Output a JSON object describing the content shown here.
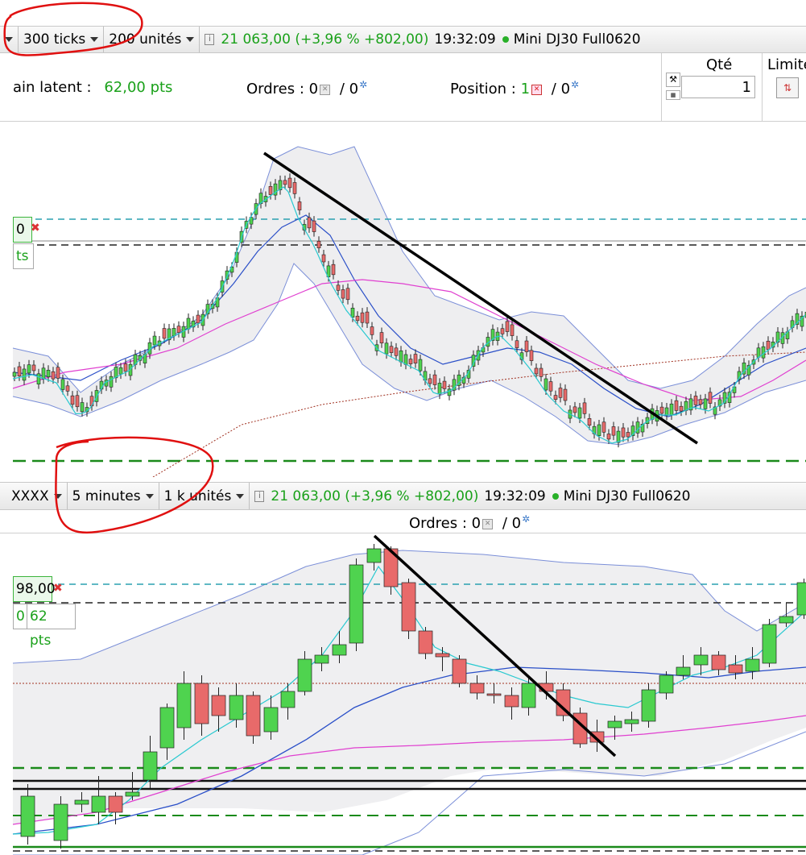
{
  "top_toolbar": {
    "ticks_label": "300 ticks",
    "units_label": "200 unités",
    "price_change": "21 063,00 (+3,96 % +802,00)",
    "time": "19:32:09",
    "instrument": "Mini DJ30 Full0620"
  },
  "order_panel": {
    "latent_label": "ain latent :",
    "latent_value": "62,00 pts",
    "orders_label": "Ordres :",
    "orders_value": "0",
    "orders_sep": "/ 0",
    "position_label": "Position :",
    "position_value": "1",
    "position_sep": "/ 0",
    "qty_label": "Qté",
    "qty_value": "1",
    "limit_label": "Limite"
  },
  "chart1": {
    "price_tag": "0",
    "pts_tag": "ts"
  },
  "bottom_toolbar": {
    "instrument_code": "XXXX",
    "interval_label": "5 minutes",
    "units_label": "1 k unités",
    "price_change": "21 063,00 (+3,96 % +802,00)",
    "time": "19:32:09",
    "instrument": "Mini DJ30 Full0620"
  },
  "bottom_orders": {
    "orders_label": "Ordres :",
    "orders_value": "0",
    "orders_sep": "/ 0"
  },
  "chart2": {
    "price_tag": "98,00",
    "pts_tag_a": "0",
    "pts_tag_b": "62 pts"
  },
  "colors": {
    "up_candle": "#4fd34f",
    "down_candle": "#e86a6a",
    "bollinger": "#7b8fd8",
    "fast_ma": "#29c9d0",
    "slow_ma": "#2a4fc8",
    "long_ma": "#e040d0",
    "trend_line": "#000000",
    "annotation": "#e01010"
  }
}
